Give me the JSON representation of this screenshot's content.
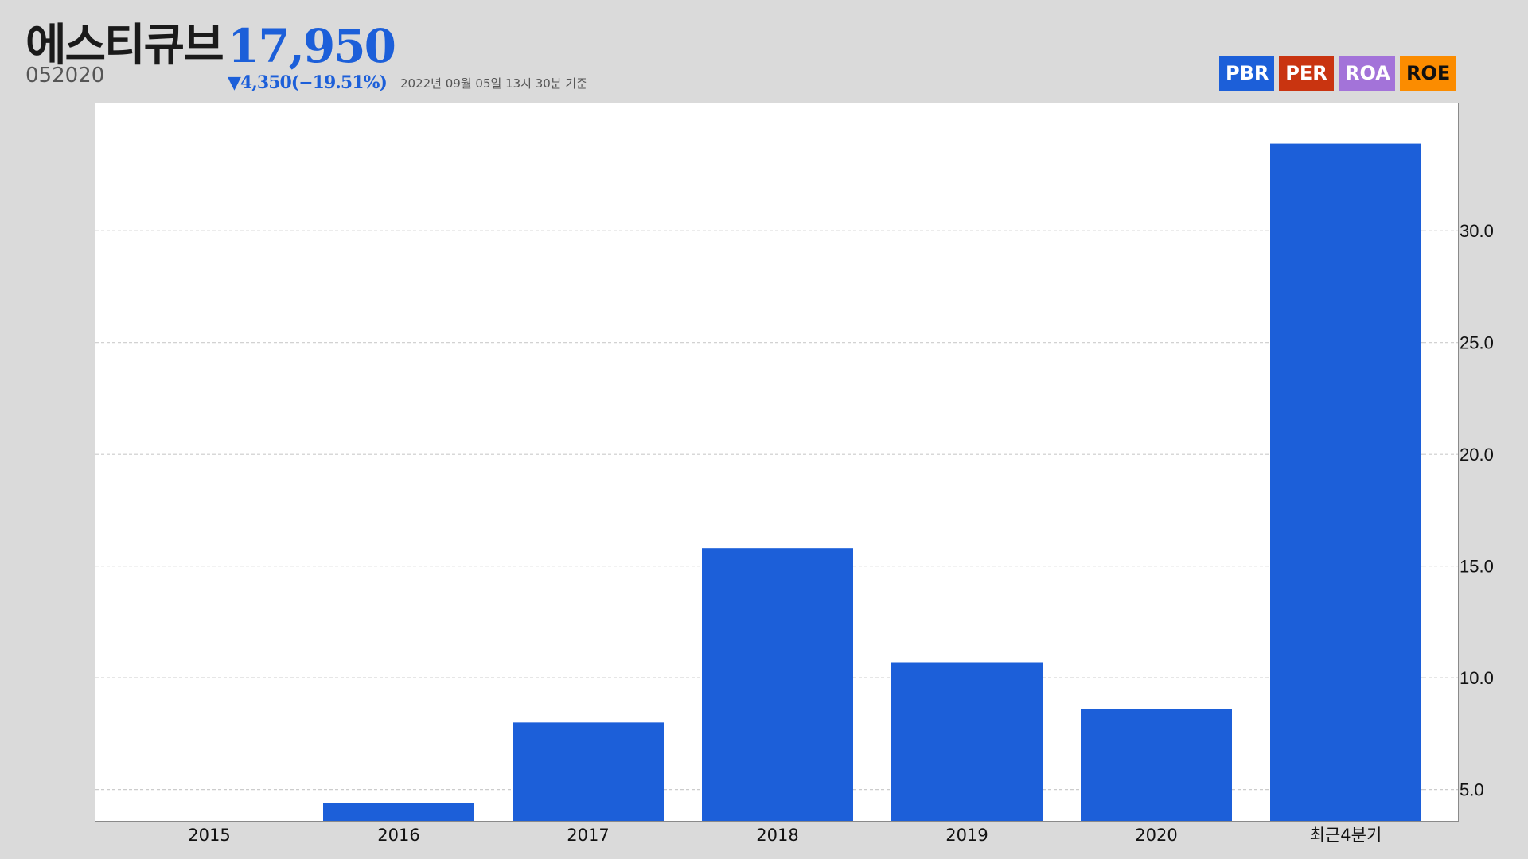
{
  "header": {
    "name": "에스티큐브",
    "code": "052020",
    "price": "17,950",
    "change": "▼4,350(−19.51%)",
    "timestamp": "2022년 09월 05일 13시 30분 기준"
  },
  "tabs": [
    {
      "label": "PBR",
      "color": "#1c5fd9"
    },
    {
      "label": "PER",
      "color": "#c93410"
    },
    {
      "label": "ROA",
      "color": "#a373d9"
    },
    {
      "label": "ROE",
      "color": "#fb8c00"
    }
  ],
  "colors": {
    "bar": "#1c5fd9",
    "grid": "#cccccc",
    "price": "#1c5fd9"
  },
  "chart_data": {
    "type": "bar",
    "categories": [
      "2015",
      "2016",
      "2017",
      "2018",
      "2019",
      "2020",
      "최근4분기"
    ],
    "values": [
      3.6,
      4.4,
      8.0,
      15.8,
      10.7,
      8.6,
      33.9
    ],
    "ylim": [
      3.6,
      35.7
    ],
    "yticks": [
      5.0,
      10.0,
      15.0,
      20.0,
      25.0,
      30.0
    ],
    "ytick_labels": [
      "5.0",
      "10.0",
      "15.0",
      "20.0",
      "25.0",
      "30.0"
    ],
    "y_axis_position": "right",
    "grid": true,
    "grid_style": "dashed"
  }
}
